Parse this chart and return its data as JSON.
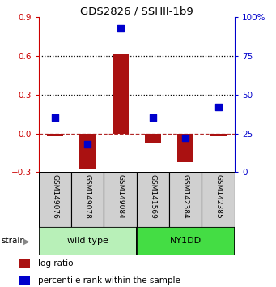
{
  "title": "GDS2826 / SSHII-1b9",
  "samples": [
    "GSM149076",
    "GSM149078",
    "GSM149084",
    "GSM141569",
    "GSM142384",
    "GSM142385"
  ],
  "log_ratio": [
    -0.02,
    -0.28,
    0.62,
    -0.07,
    -0.22,
    -0.02
  ],
  "percentile_rank": [
    35,
    18,
    93,
    35,
    22,
    42
  ],
  "strain_groups": [
    {
      "label": "wild type",
      "start": 0,
      "end": 3,
      "color": "#b8f0b8"
    },
    {
      "label": "NY1DD",
      "start": 3,
      "end": 6,
      "color": "#44dd44"
    }
  ],
  "bar_color": "#aa1111",
  "dot_color": "#0000cc",
  "left_axis_color": "#cc0000",
  "right_axis_color": "#0000cc",
  "ylim_left": [
    -0.3,
    0.9
  ],
  "ylim_right": [
    0,
    100
  ],
  "yticks_left": [
    -0.3,
    0.0,
    0.3,
    0.6,
    0.9
  ],
  "yticks_right": [
    0,
    25,
    50,
    75,
    100
  ],
  "ytick_labels_right": [
    "0",
    "25",
    "50",
    "75",
    "100%"
  ],
  "hline_dotted": [
    0.3,
    0.6
  ],
  "hline_dash": 0.0,
  "bar_width": 0.5,
  "dot_size": 28,
  "strain_label": "strain",
  "legend_log_ratio": "log ratio",
  "legend_percentile": "percentile rank within the sample"
}
